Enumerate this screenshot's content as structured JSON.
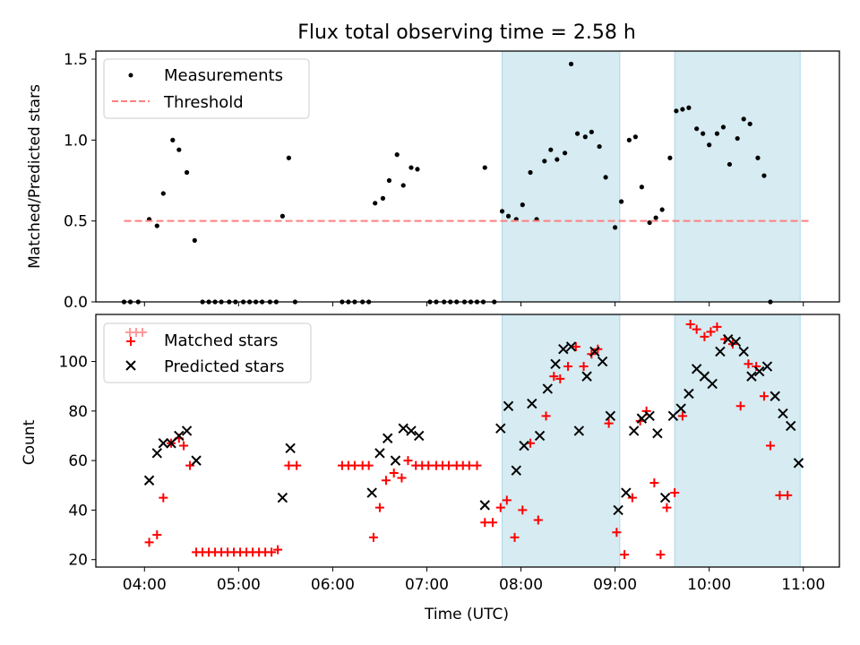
{
  "title": "Flux total observing time = 2.58 h",
  "xlabel": "Time (UTC)",
  "x_tick_labels": [
    "04:00",
    "05:00",
    "06:00",
    "07:00",
    "08:00",
    "09:00",
    "10:00",
    "11:00"
  ],
  "colors": {
    "shade": "#add8e6",
    "threshold": "#ff7f7f",
    "matched": "#ff0000",
    "predicted": "#000000",
    "measurement": "#000000"
  },
  "chart_data": [
    {
      "type": "scatter",
      "ylabel": "Matched/Predicted stars",
      "xlim": [
        "03:29",
        "11:23"
      ],
      "ylim": [
        0,
        1.55
      ],
      "y_ticks": [
        0.0,
        0.5,
        1.0,
        1.5
      ],
      "y_tick_labels": [
        "0.0",
        "0.5",
        "1.0",
        "1.5"
      ],
      "shaded_intervals": [
        [
          "07:48",
          "09:03"
        ],
        [
          "09:38",
          "10:58"
        ]
      ],
      "legend": {
        "placement": "upper-left",
        "entries": [
          "Measurements",
          "Threshold"
        ]
      },
      "series": [
        {
          "name": "Measurements",
          "marker": "dot",
          "points": [
            [
              "03:47",
              0
            ],
            [
              "03:51",
              0
            ],
            [
              "03:56",
              0
            ],
            [
              "04:03",
              0.51
            ],
            [
              "04:08",
              0.47
            ],
            [
              "04:12",
              0.67
            ],
            [
              "04:18",
              1.0
            ],
            [
              "04:22",
              0.94
            ],
            [
              "04:27",
              0.8
            ],
            [
              "04:32",
              0.38
            ],
            [
              "04:37",
              0
            ],
            [
              "04:41",
              0
            ],
            [
              "04:45",
              0
            ],
            [
              "04:49",
              0
            ],
            [
              "04:54",
              0
            ],
            [
              "04:58",
              0
            ],
            [
              "05:03",
              0
            ],
            [
              "05:07",
              0
            ],
            [
              "05:11",
              0
            ],
            [
              "05:15",
              0
            ],
            [
              "05:20",
              0
            ],
            [
              "05:24",
              0
            ],
            [
              "05:28",
              0.53
            ],
            [
              "05:32",
              0.89
            ],
            [
              "05:36",
              0
            ],
            [
              "06:06",
              0
            ],
            [
              "06:10",
              0
            ],
            [
              "06:14",
              0
            ],
            [
              "06:19",
              0
            ],
            [
              "06:23",
              0
            ],
            [
              "06:27",
              0.61
            ],
            [
              "06:32",
              0.64
            ],
            [
              "06:36",
              0.75
            ],
            [
              "06:41",
              0.91
            ],
            [
              "06:45",
              0.72
            ],
            [
              "06:50",
              0.83
            ],
            [
              "06:54",
              0.82
            ],
            [
              "07:02",
              0
            ],
            [
              "07:06",
              0
            ],
            [
              "07:11",
              0
            ],
            [
              "07:15",
              0
            ],
            [
              "07:19",
              0
            ],
            [
              "07:24",
              0
            ],
            [
              "07:28",
              0
            ],
            [
              "07:32",
              0
            ],
            [
              "07:36",
              0
            ],
            [
              "07:37",
              0.83
            ],
            [
              "07:43",
              0
            ],
            [
              "07:48",
              0.56
            ],
            [
              "07:52",
              0.53
            ],
            [
              "07:57",
              0.51
            ],
            [
              "08:01",
              0.6
            ],
            [
              "08:06",
              0.8
            ],
            [
              "08:10",
              0.51
            ],
            [
              "08:15",
              0.87
            ],
            [
              "08:19",
              0.94
            ],
            [
              "08:23",
              0.88
            ],
            [
              "08:28",
              0.92
            ],
            [
              "08:32",
              1.47
            ],
            [
              "08:36",
              1.04
            ],
            [
              "08:41",
              1.02
            ],
            [
              "08:45",
              1.05
            ],
            [
              "08:50",
              0.96
            ],
            [
              "08:54",
              0.77
            ],
            [
              "09:00",
              0.46
            ],
            [
              "09:04",
              0.62
            ],
            [
              "09:09",
              1.0
            ],
            [
              "09:13",
              1.02
            ],
            [
              "09:17",
              0.71
            ],
            [
              "09:22",
              0.49
            ],
            [
              "09:26",
              0.52
            ],
            [
              "09:30",
              0.57
            ],
            [
              "09:35",
              0.89
            ],
            [
              "09:39",
              1.18
            ],
            [
              "09:43",
              1.19
            ],
            [
              "09:47",
              1.2
            ],
            [
              "09:52",
              1.07
            ],
            [
              "09:56",
              1.04
            ],
            [
              "10:00",
              0.97
            ],
            [
              "10:05",
              1.04
            ],
            [
              "10:09",
              1.08
            ],
            [
              "10:13",
              0.85
            ],
            [
              "10:18",
              1.01
            ],
            [
              "10:22",
              1.13
            ],
            [
              "10:26",
              1.1
            ],
            [
              "10:31",
              0.89
            ],
            [
              "10:35",
              0.78
            ],
            [
              "10:39",
              0
            ]
          ]
        },
        {
          "name": "Threshold",
          "style": "dashed-line",
          "points": [
            [
              "03:47",
              0.5
            ],
            [
              "11:04",
              0.5
            ]
          ]
        }
      ]
    },
    {
      "type": "scatter",
      "ylabel": "Count",
      "xlim": [
        "03:29",
        "11:23"
      ],
      "ylim": [
        17,
        119
      ],
      "y_ticks": [
        20,
        40,
        60,
        80,
        100
      ],
      "y_tick_labels": [
        "20",
        "40",
        "60",
        "80",
        "100"
      ],
      "shaded_intervals": [
        [
          "07:48",
          "09:03"
        ],
        [
          "09:38",
          "10:58"
        ]
      ],
      "legend": {
        "placement": "upper-left",
        "entries": [
          "Matched stars",
          "Predicted stars"
        ]
      },
      "series": [
        {
          "name": "Matched stars",
          "marker": "plus",
          "points": [
            [
              "04:03",
              27
            ],
            [
              "04:08",
              30
            ],
            [
              "04:12",
              45
            ],
            [
              "04:17",
              67
            ],
            [
              "04:22",
              69
            ],
            [
              "04:25",
              66
            ],
            [
              "04:29",
              58
            ],
            [
              "04:33",
              23
            ],
            [
              "04:37",
              23
            ],
            [
              "04:41",
              23
            ],
            [
              "04:45",
              23
            ],
            [
              "04:49",
              23
            ],
            [
              "04:53",
              23
            ],
            [
              "04:57",
              23
            ],
            [
              "05:01",
              23
            ],
            [
              "05:05",
              23
            ],
            [
              "05:09",
              23
            ],
            [
              "05:13",
              23
            ],
            [
              "05:17",
              23
            ],
            [
              "05:21",
              23
            ],
            [
              "05:25",
              24
            ],
            [
              "05:32",
              58
            ],
            [
              "05:37",
              58
            ],
            [
              "06:06",
              58
            ],
            [
              "06:10",
              58
            ],
            [
              "06:14",
              58
            ],
            [
              "06:19",
              58
            ],
            [
              "06:23",
              58
            ],
            [
              "06:26",
              29
            ],
            [
              "06:30",
              41
            ],
            [
              "06:34",
              52
            ],
            [
              "06:39",
              55
            ],
            [
              "06:44",
              53
            ],
            [
              "06:48",
              60
            ],
            [
              "06:53",
              58
            ],
            [
              "06:57",
              58
            ],
            [
              "07:01",
              58
            ],
            [
              "07:06",
              58
            ],
            [
              "07:10",
              58
            ],
            [
              "07:14",
              58
            ],
            [
              "07:19",
              58
            ],
            [
              "07:23",
              58
            ],
            [
              "07:27",
              58
            ],
            [
              "07:32",
              58
            ],
            [
              "07:37",
              35
            ],
            [
              "07:42",
              35
            ],
            [
              "07:47",
              41
            ],
            [
              "07:51",
              44
            ],
            [
              "07:56",
              29
            ],
            [
              "08:01",
              40
            ],
            [
              "08:06",
              67
            ],
            [
              "08:11",
              36
            ],
            [
              "08:16",
              78
            ],
            [
              "08:21",
              94
            ],
            [
              "08:25",
              93
            ],
            [
              "08:30",
              98
            ],
            [
              "08:35",
              106
            ],
            [
              "08:40",
              98
            ],
            [
              "08:45",
              103
            ],
            [
              "08:49",
              105
            ],
            [
              "08:56",
              75
            ],
            [
              "09:01",
              31
            ],
            [
              "09:06",
              22
            ],
            [
              "09:11",
              45
            ],
            [
              "09:16",
              76
            ],
            [
              "09:20",
              80
            ],
            [
              "09:25",
              51
            ],
            [
              "09:29",
              22
            ],
            [
              "09:33",
              41
            ],
            [
              "09:38",
              47
            ],
            [
              "09:43",
              78
            ],
            [
              "09:48",
              115
            ],
            [
              "09:52",
              113
            ],
            [
              "09:57",
              110
            ],
            [
              "10:01",
              112
            ],
            [
              "10:05",
              114
            ],
            [
              "10:10",
              109
            ],
            [
              "10:15",
              107
            ],
            [
              "10:20",
              82
            ],
            [
              "10:25",
              99
            ],
            [
              "10:30",
              98
            ],
            [
              "10:35",
              86
            ],
            [
              "10:39",
              66
            ],
            [
              "10:45",
              46
            ],
            [
              "10:50",
              46
            ]
          ]
        },
        {
          "name": "Predicted stars",
          "marker": "x",
          "points": [
            [
              "04:03",
              52
            ],
            [
              "04:08",
              63
            ],
            [
              "04:12",
              67
            ],
            [
              "04:17",
              67
            ],
            [
              "04:22",
              70
            ],
            [
              "04:27",
              72
            ],
            [
              "04:33",
              60
            ],
            [
              "05:28",
              45
            ],
            [
              "05:33",
              65
            ],
            [
              "06:25",
              47
            ],
            [
              "06:30",
              63
            ],
            [
              "06:35",
              69
            ],
            [
              "06:40",
              60
            ],
            [
              "06:45",
              73
            ],
            [
              "06:50",
              72
            ],
            [
              "06:55",
              70
            ],
            [
              "07:37",
              42
            ],
            [
              "07:47",
              73
            ],
            [
              "07:52",
              82
            ],
            [
              "07:57",
              56
            ],
            [
              "08:02",
              66
            ],
            [
              "08:07",
              83
            ],
            [
              "08:12",
              70
            ],
            [
              "08:17",
              89
            ],
            [
              "08:22",
              99
            ],
            [
              "08:27",
              105
            ],
            [
              "08:32",
              106
            ],
            [
              "08:37",
              72
            ],
            [
              "08:42",
              94
            ],
            [
              "08:47",
              104
            ],
            [
              "08:52",
              100
            ],
            [
              "08:57",
              78
            ],
            [
              "09:02",
              40
            ],
            [
              "09:07",
              47
            ],
            [
              "09:12",
              72
            ],
            [
              "09:17",
              77
            ],
            [
              "09:22",
              78
            ],
            [
              "09:27",
              71
            ],
            [
              "09:32",
              45
            ],
            [
              "09:37",
              78
            ],
            [
              "09:42",
              81
            ],
            [
              "09:47",
              87
            ],
            [
              "09:52",
              97
            ],
            [
              "09:57",
              94
            ],
            [
              "10:02",
              91
            ],
            [
              "10:07",
              104
            ],
            [
              "10:12",
              109
            ],
            [
              "10:17",
              108
            ],
            [
              "10:22",
              104
            ],
            [
              "10:27",
              94
            ],
            [
              "10:32",
              96
            ],
            [
              "10:37",
              98
            ],
            [
              "10:42",
              86
            ],
            [
              "10:47",
              79
            ],
            [
              "10:52",
              74
            ],
            [
              "10:57",
              59
            ]
          ]
        }
      ]
    }
  ]
}
